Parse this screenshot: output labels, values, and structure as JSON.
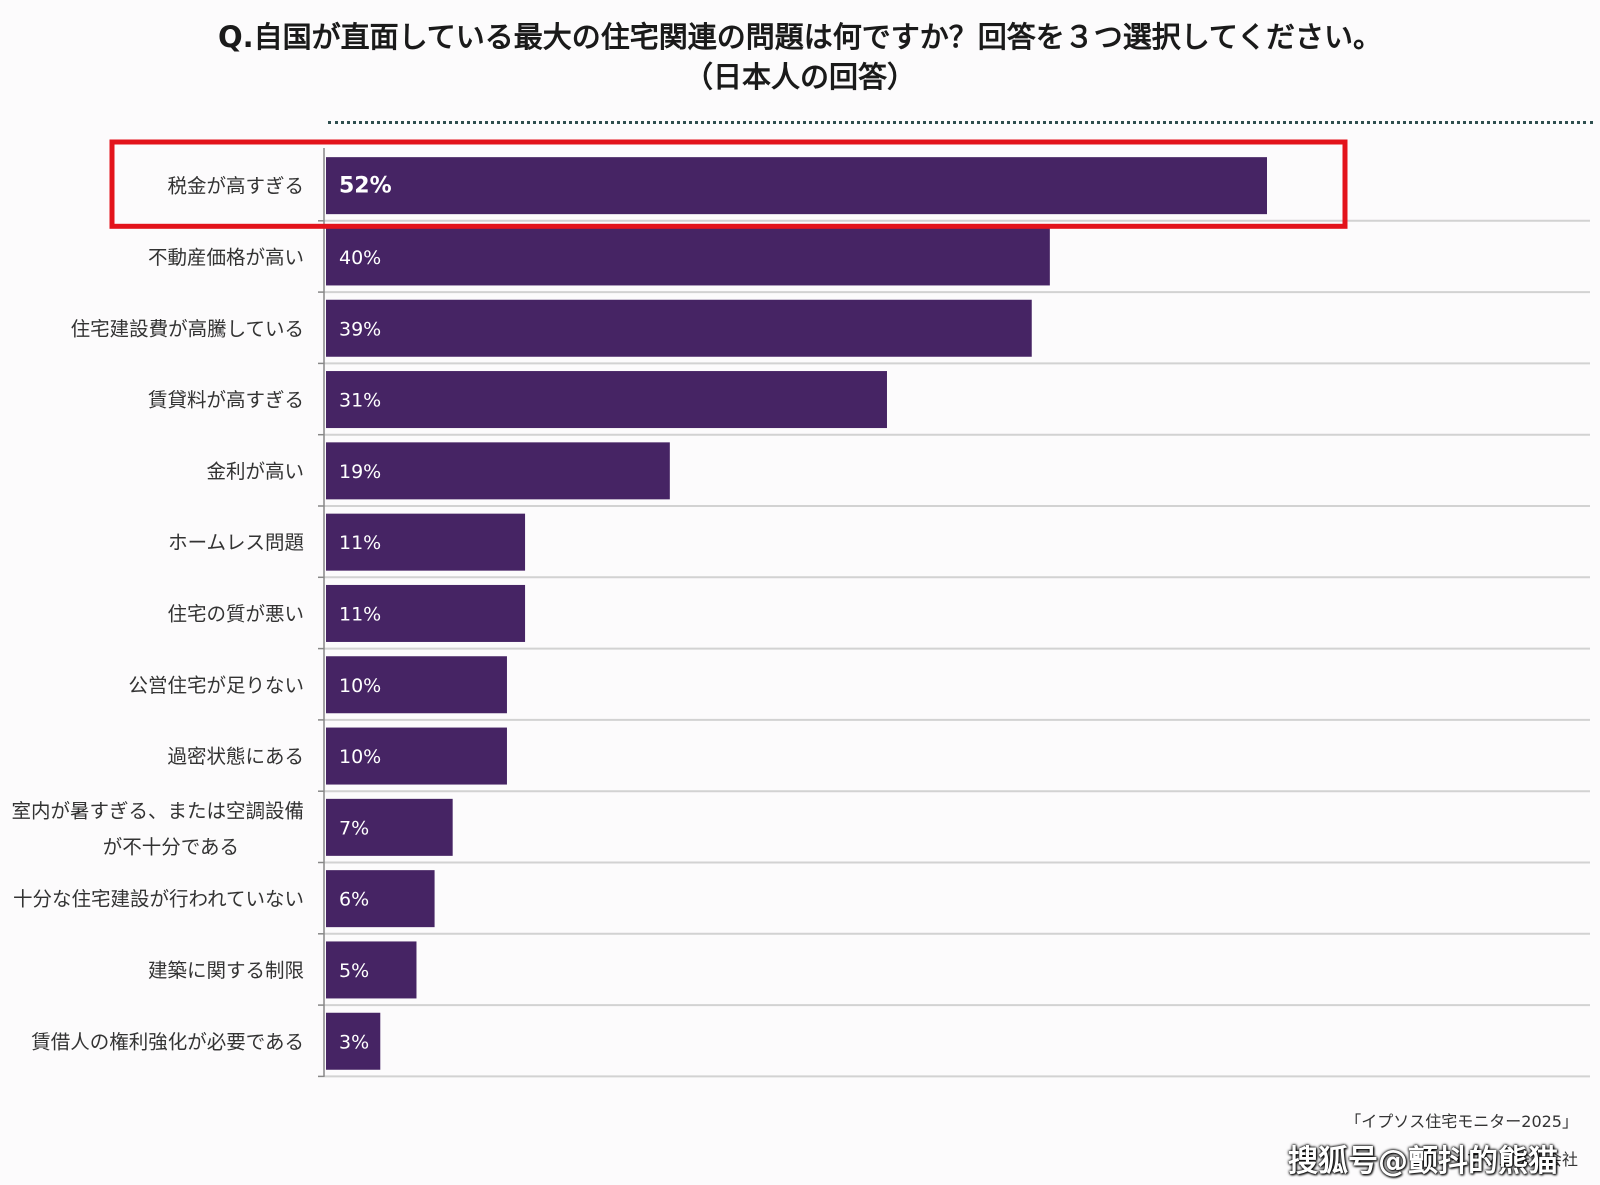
{
  "title_line1": "Q.自国が直面している最大の住宅関連の問題は何ですか？回答を３つ選択してください。",
  "title_line2": "（日本人の回答）",
  "source": "「イプソス住宅モニター2025」",
  "company": "イプソス株式会社",
  "watermark": "搜狐号@颤抖的熊猫",
  "colors": {
    "bar": "#462464",
    "highlight_box": "#e3131b",
    "grid": "#d2d2d2"
  },
  "chart_data": {
    "type": "bar",
    "orientation": "horizontal",
    "title": "Q.自国が直面している最大の住宅関連の問題は何ですか？回答を３つ選択してください。",
    "subtitle": "（日本人の回答）",
    "xlim": [
      0,
      60
    ],
    "grid": false,
    "categories": [
      "税金が高すぎる",
      "不動産価格が高い",
      "住宅建設費が高騰している",
      "賃貸料が高すぎる",
      "金利が高い",
      "ホームレス問題",
      "住宅の質が悪い",
      "公営住宅が足りない",
      "過密状態にある",
      "室内が暑すぎる、または空調設備が不十分である",
      "十分な住宅建設が行われていない",
      "建築に関する制限",
      "賃借人の権利強化が必要である"
    ],
    "values": [
      52,
      40,
      39,
      31,
      19,
      11,
      11,
      10,
      10,
      7,
      6,
      5,
      3
    ],
    "value_labels": [
      "52%",
      "40%",
      "39%",
      "31%",
      "19%",
      "11%",
      "11%",
      "10%",
      "10%",
      "7%",
      "6%",
      "5%",
      "3%"
    ],
    "highlighted_index": 0
  }
}
